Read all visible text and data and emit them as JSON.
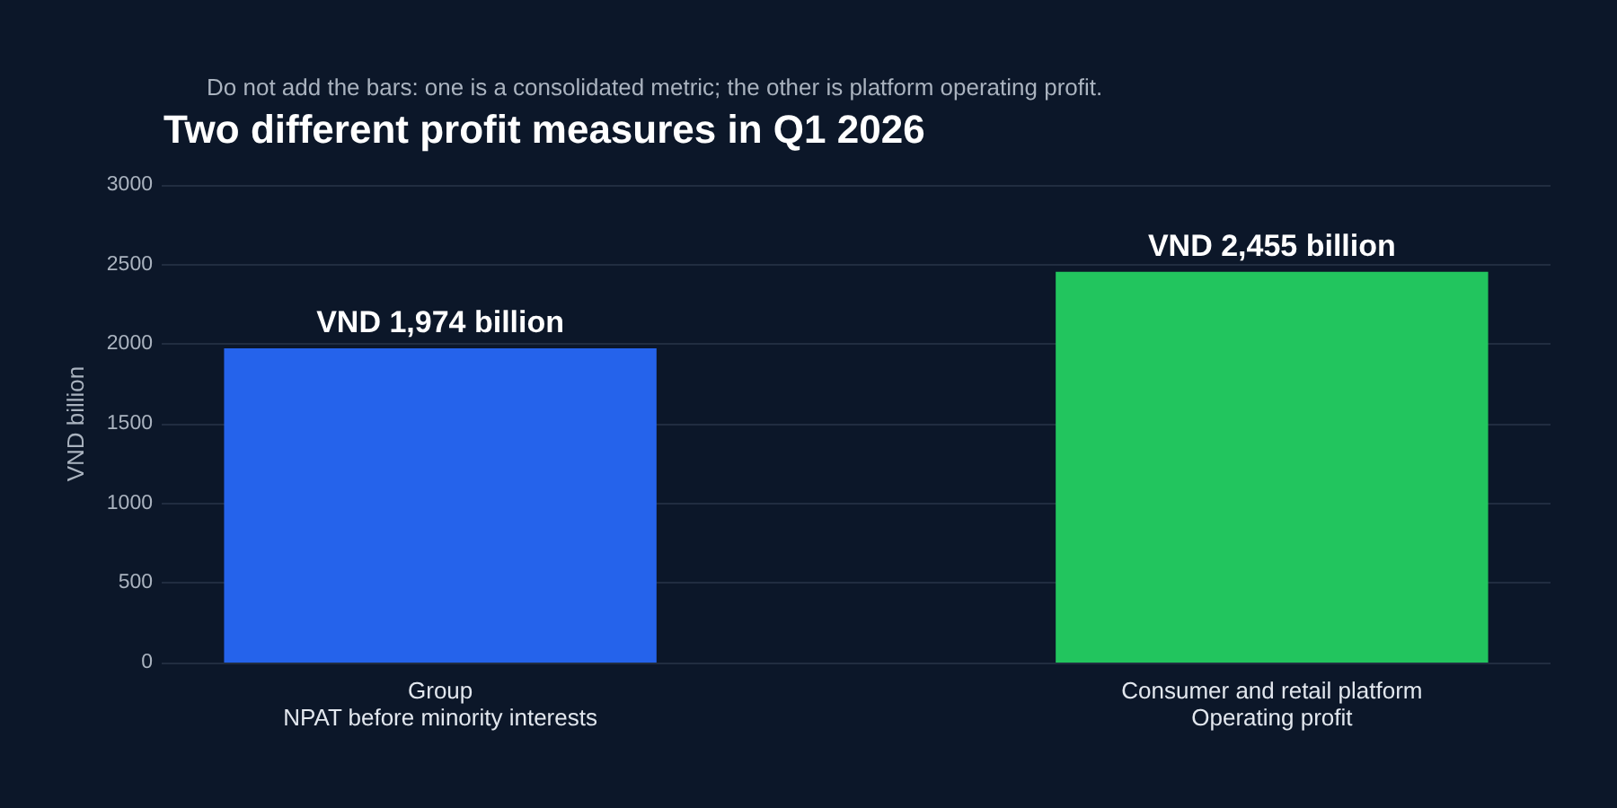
{
  "chart_data": {
    "type": "bar",
    "title": "Two different profit measures in Q1 2026",
    "subtitle": "Do not add the bars: one is a consolidated metric; the other is platform operating profit.",
    "ylabel": "VND billion",
    "categories": [
      "Group\nNPAT before minority interests",
      "Consumer and retail platform\nOperating profit"
    ],
    "values": [
      1974,
      2455
    ],
    "colors": [
      "#2563eb",
      "#22c55e"
    ],
    "value_labels": [
      "VND 1,974 billion",
      "VND 2,455 billion"
    ],
    "ylim": [
      0,
      3000
    ],
    "yticks": [
      0,
      500,
      1000,
      1500,
      2000,
      2500,
      3000
    ],
    "grid": "y"
  }
}
